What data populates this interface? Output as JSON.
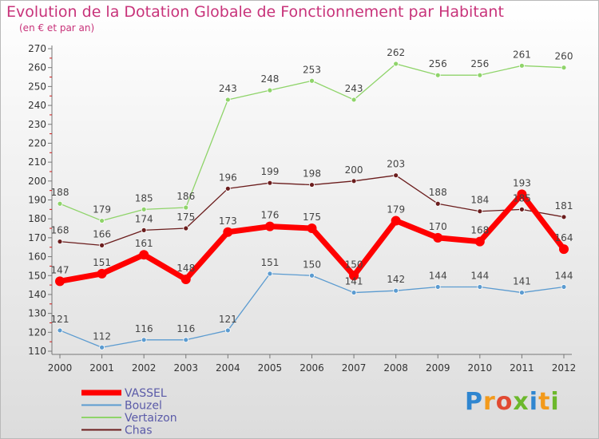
{
  "title": "Evolution de la Dotation Globale de Fonctionnement par Habitant",
  "subtitle": "(en € et par an)",
  "logo": {
    "text": "Proxiti"
  },
  "colors": {
    "VASSEL": "#ff0000",
    "Bouzel": "#5b9bd0",
    "Vertaizon": "#8fd46a",
    "Chas": "#6b1d1d"
  },
  "chart_data": {
    "type": "line",
    "title": "Evolution de la Dotation Globale de Fonctionnement par Habitant",
    "subtitle": "(en € et par an)",
    "xlabel": "",
    "ylabel": "",
    "x": [
      "2000",
      "2001",
      "2002",
      "2003",
      "2004",
      "2005",
      "2006",
      "2007",
      "2008",
      "2009",
      "2010",
      "2011",
      "2012"
    ],
    "ylim": [
      110,
      270
    ],
    "yticks": [
      110,
      120,
      130,
      140,
      150,
      160,
      170,
      180,
      190,
      200,
      210,
      220,
      230,
      240,
      250,
      260,
      270
    ],
    "grid": false,
    "legend_position": "bottom-left",
    "series": [
      {
        "name": "VASSEL",
        "values": [
          147,
          151,
          161,
          148,
          173,
          176,
          175,
          150,
          179,
          170,
          168,
          193,
          164
        ]
      },
      {
        "name": "Bouzel",
        "values": [
          121,
          112,
          116,
          116,
          121,
          151,
          150,
          141,
          142,
          144,
          144,
          141,
          144
        ]
      },
      {
        "name": "Vertaizon",
        "values": [
          188,
          179,
          185,
          186,
          243,
          248,
          253,
          243,
          262,
          256,
          256,
          261,
          260
        ]
      },
      {
        "name": "Chas",
        "values": [
          168,
          166,
          174,
          175,
          196,
          199,
          198,
          200,
          203,
          188,
          184,
          185,
          181
        ]
      }
    ]
  }
}
